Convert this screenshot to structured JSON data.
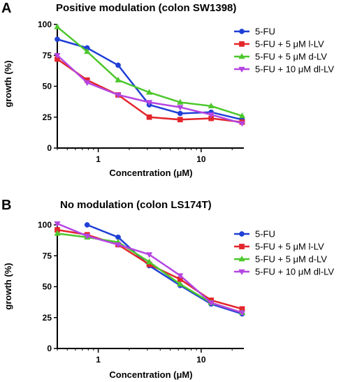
{
  "chart_data": [
    {
      "panel": "A",
      "type": "line",
      "title": "Positive modulation (colon SW1398)",
      "xlabel": "Concentration (μM)",
      "ylabel": "growth (%)",
      "xscale": "log",
      "xlim": [
        0.4,
        26
      ],
      "ylim": [
        0,
        100
      ],
      "yticks": [
        "0",
        "25",
        "50",
        "75",
        "100"
      ],
      "xticks": [
        "1",
        "10"
      ],
      "legend_position": "right",
      "series": [
        {
          "name": "5-FU",
          "color": "#1f3fd6",
          "marker": "circle",
          "x": [
            0.4,
            0.78,
            1.56,
            3.13,
            6.25,
            12.5,
            25
          ],
          "y": [
            88,
            81,
            67,
            35,
            28,
            29,
            23
          ]
        },
        {
          "name": "5-FU + 5 μM l-LV",
          "color": "#e3262b",
          "marker": "square",
          "x": [
            0.4,
            0.78,
            1.56,
            3.13,
            6.25,
            12.5,
            25
          ],
          "y": [
            72,
            55,
            43,
            25,
            23,
            24,
            21
          ]
        },
        {
          "name": "5-FU + 5 μM d-LV",
          "color": "#4cc72c",
          "marker": "triangle-up",
          "x": [
            0.4,
            0.78,
            1.56,
            3.13,
            6.25,
            12.5,
            25
          ],
          "y": [
            98,
            78,
            55,
            45,
            37,
            34,
            26
          ]
        },
        {
          "name": "5-FU + 10 μM dl-LV",
          "color": "#b545e2",
          "marker": "triangle-down",
          "x": [
            0.4,
            0.78,
            1.56,
            3.13,
            6.25,
            12.5,
            25
          ],
          "y": [
            75,
            53,
            43,
            37,
            33,
            27,
            20
          ]
        }
      ]
    },
    {
      "panel": "B",
      "type": "line",
      "title": "No modulation (colon LS174T)",
      "xlabel": "Concentration (μM)",
      "ylabel": "growth (%)",
      "xscale": "log",
      "xlim": [
        0.4,
        26
      ],
      "ylim": [
        0,
        100
      ],
      "yticks": [
        "0",
        "25",
        "50",
        "75",
        "100"
      ],
      "xticks": [
        "1",
        "10"
      ],
      "legend_position": "right",
      "series": [
        {
          "name": "5-FU",
          "color": "#1f3fd6",
          "marker": "circle",
          "x": [
            0.78,
            1.56,
            3.13,
            6.25,
            12.5,
            25
          ],
          "y": [
            100,
            90,
            67,
            51,
            36,
            28
          ]
        },
        {
          "name": "5-FU + 5 μM l-LV",
          "color": "#e3262b",
          "marker": "square",
          "x": [
            0.4,
            0.78,
            1.56,
            3.13,
            6.25,
            12.5,
            25
          ],
          "y": [
            96,
            92,
            84,
            68,
            56,
            39,
            32
          ]
        },
        {
          "name": "5-FU + 5 μM d-LV",
          "color": "#4cc72c",
          "marker": "triangle-up",
          "x": [
            0.4,
            0.78,
            1.56,
            3.13,
            6.25,
            12.5,
            25
          ],
          "y": [
            93,
            90,
            86,
            70,
            52,
            37,
            29
          ]
        },
        {
          "name": "5-FU + 10 μM dl-LV",
          "color": "#b545e2",
          "marker": "triangle-down",
          "x": [
            0.4,
            0.78,
            1.56,
            3.13,
            6.25,
            12.5,
            25
          ],
          "y": [
            101,
            91,
            84,
            76,
            59,
            37,
            29
          ]
        }
      ]
    }
  ]
}
